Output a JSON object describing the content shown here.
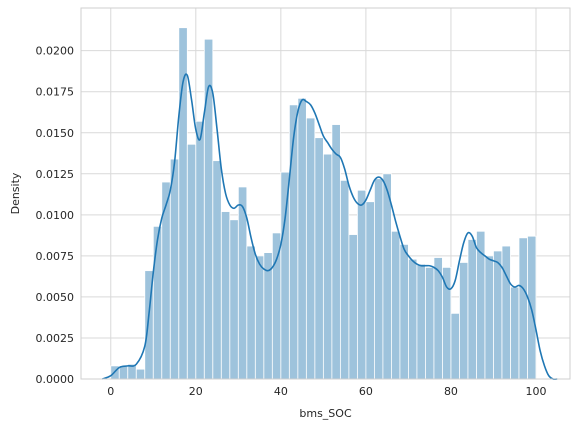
{
  "chart_data": {
    "type": "bar",
    "title": "",
    "xlabel": "bms_SOC",
    "ylabel": "Density",
    "xlim": [
      -7,
      108
    ],
    "ylim": [
      0,
      0.0226
    ],
    "grid": true,
    "style": "whitegrid",
    "colors": {
      "bar_fill": "#9ec3dc",
      "bar_edge": "#ffffff",
      "kde_line": "#1f77b4",
      "grid": "#d9d9d9",
      "axis_frame": "#cfcfcf"
    },
    "x_ticks": [
      0,
      20,
      40,
      60,
      80,
      100
    ],
    "x_tick_labels": [
      "0",
      "20",
      "40",
      "60",
      "80",
      "100"
    ],
    "y_ticks": [
      0,
      0.0025,
      0.005,
      0.0075,
      0.01,
      0.0125,
      0.015,
      0.0175,
      0.02
    ],
    "y_tick_labels": [
      "0.0000",
      "0.0025",
      "0.0050",
      "0.0075",
      "0.0100",
      "0.0125",
      "0.0150",
      "0.0175",
      "0.0200"
    ],
    "histogram": {
      "bin_edges": [
        0,
        2,
        4,
        6,
        8,
        10,
        12,
        14,
        16,
        18,
        20,
        22,
        24,
        26,
        28,
        30,
        32,
        34,
        36,
        38,
        40,
        42,
        44,
        46,
        48,
        50,
        52,
        54,
        56,
        58,
        60,
        62,
        64,
        66,
        68,
        70,
        72,
        74,
        76,
        78,
        80,
        82,
        84,
        86,
        88,
        90,
        92,
        94,
        96,
        98,
        100
      ],
      "densities": [
        0.0008,
        0.0008,
        0.0009,
        0.0006,
        0.0066,
        0.0093,
        0.012,
        0.0134,
        0.0214,
        0.0143,
        0.0157,
        0.0207,
        0.0133,
        0.0102,
        0.0097,
        0.0117,
        0.0081,
        0.0075,
        0.0077,
        0.0089,
        0.0126,
        0.0167,
        0.0171,
        0.0159,
        0.0147,
        0.0137,
        0.0155,
        0.0121,
        0.0088,
        0.0115,
        0.0108,
        0.0122,
        0.0125,
        0.009,
        0.0082,
        0.0073,
        0.007,
        0.0068,
        0.0074,
        0.0068,
        0.004,
        0.0071,
        0.0085,
        0.009,
        0.0075,
        0.0078,
        0.0081,
        0.0056,
        0.0086,
        0.0087
      ]
    },
    "kde": {
      "x": [
        -2,
        0,
        2,
        4,
        6,
        8,
        9,
        10,
        11,
        12,
        13,
        14,
        15,
        16,
        17,
        18,
        19,
        20,
        21,
        22,
        23,
        24,
        25,
        26,
        27,
        28,
        29,
        30,
        31,
        32,
        33,
        34,
        35,
        36,
        37,
        38,
        39,
        40,
        41,
        42,
        43,
        44,
        45,
        46,
        47,
        48,
        49,
        50,
        51,
        52,
        53,
        54,
        55,
        56,
        57,
        58,
        59,
        60,
        61,
        62,
        63,
        64,
        65,
        66,
        67,
        68,
        69,
        70,
        71,
        72,
        73,
        74,
        75,
        76,
        77,
        78,
        79,
        80,
        81,
        82,
        83,
        84,
        85,
        86,
        87,
        88,
        89,
        90,
        91,
        92,
        93,
        94,
        95,
        96,
        97,
        98,
        99,
        100,
        101,
        102,
        103,
        104,
        105
      ],
      "y": [
        0.0,
        0.0002,
        0.0007,
        0.0008,
        0.0009,
        0.002,
        0.004,
        0.0065,
        0.0085,
        0.0098,
        0.0106,
        0.0115,
        0.0132,
        0.016,
        0.0181,
        0.0185,
        0.017,
        0.0152,
        0.0146,
        0.0162,
        0.0178,
        0.0174,
        0.0152,
        0.0128,
        0.0113,
        0.0106,
        0.0104,
        0.0106,
        0.0105,
        0.0098,
        0.0086,
        0.0076,
        0.007,
        0.0067,
        0.0066,
        0.0068,
        0.0073,
        0.0082,
        0.0098,
        0.0122,
        0.0147,
        0.0163,
        0.017,
        0.0169,
        0.0167,
        0.0162,
        0.0155,
        0.0148,
        0.0144,
        0.014,
        0.0137,
        0.0135,
        0.0128,
        0.0118,
        0.0111,
        0.0107,
        0.0106,
        0.0109,
        0.0115,
        0.0121,
        0.0123,
        0.0121,
        0.0115,
        0.0106,
        0.0096,
        0.0087,
        0.0079,
        0.0075,
        0.0072,
        0.007,
        0.0069,
        0.0069,
        0.0069,
        0.0068,
        0.0066,
        0.0062,
        0.0056,
        0.0055,
        0.006,
        0.0072,
        0.0083,
        0.0089,
        0.0087,
        0.008,
        0.0077,
        0.0075,
        0.0073,
        0.0072,
        0.0071,
        0.0068,
        0.0063,
        0.0058,
        0.0056,
        0.0057,
        0.0055,
        0.005,
        0.0042,
        0.003,
        0.0017,
        0.0008,
        0.0002,
        0.0,
        0.0
      ]
    }
  }
}
